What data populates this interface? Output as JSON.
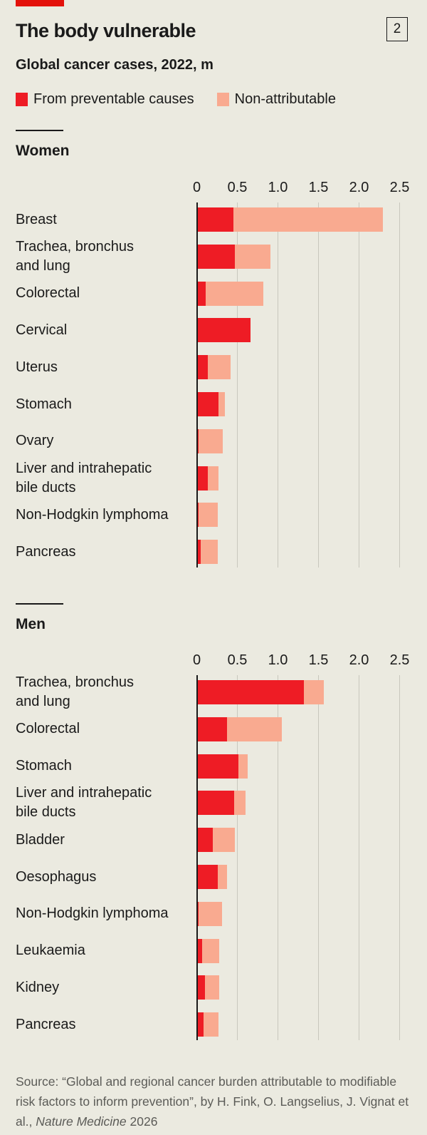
{
  "header": {
    "title": "The body vulnerable",
    "badge": "2",
    "subtitle": "Global cancer cases, 2022, m"
  },
  "legend": [
    {
      "label": "From preventable causes",
      "color": "#ee1c25"
    },
    {
      "label": "Non-attributable",
      "color": "#f9aa90"
    }
  ],
  "source": {
    "prefix": "Source: “Global and regional cancer burden attributable to modifiable risk factors to inform prevention”, by H. Fink, O. Langselius, J. Vignat et al., ",
    "journal": "Nature Medicine",
    "suffix": " 2026"
  },
  "chart_data": [
    {
      "type": "bar",
      "orientation": "horizontal",
      "stacked": true,
      "title": "Women",
      "xlabel": "Global cancer cases, 2022, m",
      "xlim": [
        0,
        2.5
      ],
      "ticks": [
        "0",
        "0.5",
        "1.0",
        "1.5",
        "2.0",
        "2.5"
      ],
      "grid": true,
      "categories": [
        "Breast",
        "Trachea, bronchus and lung",
        "Colorectal",
        "Cervical",
        "Uterus",
        "Stomach",
        "Ovary",
        "Liver and intrahepatic bile ducts",
        "Non-Hodgkin lymphoma",
        "Pancreas"
      ],
      "series": [
        {
          "name": "From preventable causes",
          "color": "#ee1c25",
          "values": [
            0.45,
            0.47,
            0.11,
            0.66,
            0.14,
            0.27,
            0.02,
            0.14,
            0.02,
            0.05
          ]
        },
        {
          "name": "Non-attributable",
          "color": "#f9aa90",
          "values": [
            1.84,
            0.44,
            0.71,
            0.0,
            0.28,
            0.08,
            0.3,
            0.13,
            0.24,
            0.21
          ]
        }
      ]
    },
    {
      "type": "bar",
      "orientation": "horizontal",
      "stacked": true,
      "title": "Men",
      "xlabel": "Global cancer cases, 2022, m",
      "xlim": [
        0,
        2.5
      ],
      "ticks": [
        "0",
        "0.5",
        "1.0",
        "1.5",
        "2.0",
        "2.5"
      ],
      "grid": true,
      "categories": [
        "Trachea, bronchus and lung",
        "Colorectal",
        "Stomach",
        "Liver and intrahepatic bile ducts",
        "Bladder",
        "Oesophagus",
        "Non-Hodgkin lymphoma",
        "Leukaemia",
        "Kidney",
        "Pancreas"
      ],
      "series": [
        {
          "name": "From preventable causes",
          "color": "#ee1c25",
          "values": [
            1.32,
            0.37,
            0.51,
            0.46,
            0.2,
            0.26,
            0.02,
            0.07,
            0.1,
            0.08
          ]
        },
        {
          "name": "Non-attributable",
          "color": "#f9aa90",
          "values": [
            0.25,
            0.68,
            0.12,
            0.14,
            0.27,
            0.11,
            0.29,
            0.21,
            0.18,
            0.19
          ]
        }
      ]
    }
  ],
  "panels": [
    {
      "title": "Women",
      "row_labels": [
        [
          "Breast"
        ],
        [
          "Trachea, bronchus",
          "and lung"
        ],
        [
          "Colorectal"
        ],
        [
          "Cervical"
        ],
        [
          "Uterus"
        ],
        [
          "Stomach"
        ],
        [
          "Ovary"
        ],
        [
          "Liver and intrahepatic",
          "bile ducts"
        ],
        [
          "Non-Hodgkin lymphoma"
        ],
        [
          "Pancreas"
        ]
      ]
    },
    {
      "title": "Men",
      "row_labels": [
        [
          "Trachea, bronchus",
          "and lung"
        ],
        [
          "Colorectal"
        ],
        [
          "Stomach"
        ],
        [
          "Liver and intrahepatic",
          "bile ducts"
        ],
        [
          "Bladder"
        ],
        [
          "Oesophagus"
        ],
        [
          "Non-Hodgkin lymphoma"
        ],
        [
          "Leukaemia"
        ],
        [
          "Kidney"
        ],
        [
          "Pancreas"
        ]
      ]
    }
  ]
}
